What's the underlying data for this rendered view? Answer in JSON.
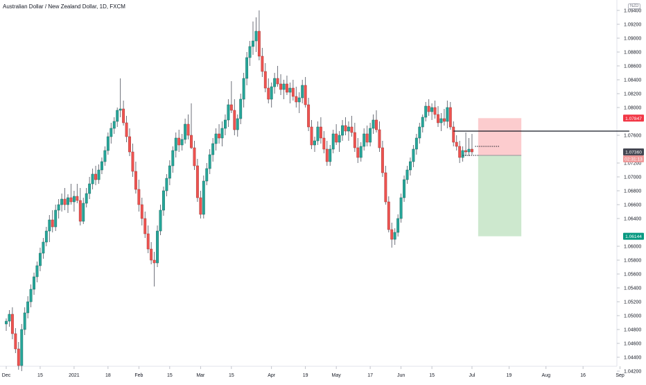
{
  "header": {
    "title": "Australian Dollar / New Zealand Dollar, 1D, FXCM"
  },
  "currency_badge": "NZD",
  "colors": {
    "up": "#26a69a",
    "down": "#ef5350",
    "up_border": "#1b6d63",
    "down_border": "#a83a38",
    "wick": "#5d606b",
    "axis_text": "#131722",
    "risk_zone": "#fcc3c6",
    "reward_zone": "#c8e6c9",
    "stop_tag": "#f23645",
    "target_tag": "#089981",
    "price_tag": "#434651"
  },
  "price_tags": [
    {
      "label": "1.07847",
      "value": 1.07847,
      "color": "#f23645"
    },
    {
      "label": "1.07360",
      "value": 1.0736,
      "color": "#434651"
    },
    {
      "label": "02:31:13",
      "value": 1.0731,
      "color": "#ef9a9a"
    },
    {
      "label": "1.06144",
      "value": 1.06144,
      "color": "#089981"
    }
  ],
  "chart_data": {
    "type": "candlestick",
    "title": "Australian Dollar / New Zealand Dollar, 1D, FXCM",
    "ylim": [
      1.0415,
      1.0955
    ],
    "y_ticks": [
      "1.09400",
      "1.09200",
      "1.09000",
      "1.08800",
      "1.08600",
      "1.08400",
      "1.08200",
      "1.08000",
      "1.07600",
      "1.07200",
      "1.07000",
      "1.06800",
      "1.06600",
      "1.06400",
      "1.06000",
      "1.05800",
      "1.05600",
      "1.05400",
      "1.05200",
      "1.05000",
      "1.04800",
      "1.04600",
      "1.04400",
      "1.04200"
    ],
    "x_ticks": [
      "Dec",
      "15",
      "2021",
      "18",
      "Feb",
      "15",
      "Mar",
      "15",
      "Apr",
      "19",
      "May",
      "17",
      "Jun",
      "15",
      "Jul",
      "19",
      "Aug",
      "16",
      "Sep"
    ],
    "x_tick_index": [
      0,
      11,
      22,
      33,
      43,
      53,
      63,
      73,
      86,
      97,
      107,
      118,
      128,
      138,
      151,
      163,
      175,
      187,
      199
    ],
    "levels": {
      "horizontal_line": 1.0766,
      "entry": 1.0731,
      "stop": 1.07847,
      "target": 1.06144,
      "dotted_line": 1.0744
    },
    "zone_index": [
      153,
      167
    ],
    "hline_index": [
      145,
      202
    ],
    "dotted_index": [
      152,
      160
    ],
    "series": [
      {
        "ohlc": [
          [
            1.0488,
            1.0496,
            1.0478,
            1.0492
          ],
          [
            1.0492,
            1.0508,
            1.0484,
            1.0502
          ],
          [
            1.0502,
            1.0512,
            1.0466,
            1.0474
          ],
          [
            1.0474,
            1.0482,
            1.0446,
            1.0452
          ],
          [
            1.0452,
            1.0462,
            1.0422,
            1.0428
          ],
          [
            1.0428,
            1.0488,
            1.042,
            1.048
          ],
          [
            1.048,
            1.0512,
            1.0472,
            1.0504
          ],
          [
            1.0504,
            1.0528,
            1.0496,
            1.052
          ],
          [
            1.052,
            1.0545,
            1.0512,
            1.0538
          ],
          [
            1.0538,
            1.0562,
            1.053,
            1.0556
          ],
          [
            1.0556,
            1.0578,
            1.0548,
            1.0572
          ],
          [
            1.0572,
            1.0598,
            1.0564,
            1.059
          ],
          [
            1.059,
            1.0612,
            1.0582,
            1.0606
          ],
          [
            1.0606,
            1.0628,
            1.06,
            1.0622
          ],
          [
            1.0622,
            1.0645,
            1.0606,
            1.0638
          ],
          [
            1.0638,
            1.0652,
            1.062,
            1.0628
          ],
          [
            1.0628,
            1.066,
            1.0622,
            1.0652
          ],
          [
            1.0652,
            1.0668,
            1.064,
            1.066
          ],
          [
            1.066,
            1.0676,
            1.065,
            1.0668
          ],
          [
            1.0668,
            1.0684,
            1.0652,
            1.066
          ],
          [
            1.066,
            1.0675,
            1.0648,
            1.067
          ],
          [
            1.067,
            1.069,
            1.066,
            1.0664
          ],
          [
            1.0664,
            1.068,
            1.065,
            1.0672
          ],
          [
            1.0672,
            1.069,
            1.0662,
            1.0666
          ],
          [
            1.0666,
            1.0684,
            1.063,
            1.0636
          ],
          [
            1.0636,
            1.067,
            1.0632,
            1.0662
          ],
          [
            1.0662,
            1.0684,
            1.0656,
            1.0676
          ],
          [
            1.0676,
            1.07,
            1.0668,
            1.069
          ],
          [
            1.069,
            1.0712,
            1.0682,
            1.0704
          ],
          [
            1.0704,
            1.0716,
            1.0688,
            1.0696
          ],
          [
            1.0696,
            1.0718,
            1.069,
            1.071
          ],
          [
            1.071,
            1.0728,
            1.0704,
            1.0722
          ],
          [
            1.0722,
            1.0744,
            1.0716,
            1.0738
          ],
          [
            1.0738,
            1.0764,
            1.0732,
            1.0758
          ],
          [
            1.0758,
            1.0778,
            1.0748,
            1.077
          ],
          [
            1.077,
            1.0786,
            1.0762,
            1.078
          ],
          [
            1.078,
            1.08,
            1.0772,
            1.0796
          ],
          [
            1.0796,
            1.0842,
            1.0786,
            1.0798
          ],
          [
            1.0798,
            1.081,
            1.0774,
            1.0778
          ],
          [
            1.0778,
            1.0788,
            1.075,
            1.0758
          ],
          [
            1.0758,
            1.077,
            1.073,
            1.0736
          ],
          [
            1.0736,
            1.0748,
            1.07,
            1.0708
          ],
          [
            1.0708,
            1.0722,
            1.0676,
            1.0682
          ],
          [
            1.0682,
            1.0696,
            1.065,
            1.066
          ],
          [
            1.066,
            1.067,
            1.063,
            1.064
          ],
          [
            1.064,
            1.065,
            1.0612,
            1.0618
          ],
          [
            1.0618,
            1.063,
            1.059,
            1.0596
          ],
          [
            1.0596,
            1.0606,
            1.0574,
            1.058
          ],
          [
            1.058,
            1.0592,
            1.0542,
            1.0576
          ],
          [
            1.0576,
            1.063,
            1.057,
            1.0622
          ],
          [
            1.0622,
            1.066,
            1.0616,
            1.0652
          ],
          [
            1.0652,
            1.0686,
            1.0644,
            1.068
          ],
          [
            1.068,
            1.0704,
            1.0672,
            1.0698
          ],
          [
            1.0698,
            1.0724,
            1.0688,
            1.0716
          ],
          [
            1.0716,
            1.0744,
            1.0706,
            1.0738
          ],
          [
            1.0738,
            1.0764,
            1.0728,
            1.0756
          ],
          [
            1.0756,
            1.0768,
            1.0736,
            1.0746
          ],
          [
            1.0746,
            1.0762,
            1.0738,
            1.0754
          ],
          [
            1.0754,
            1.0784,
            1.0748,
            1.0776
          ],
          [
            1.0776,
            1.079,
            1.0754,
            1.076
          ],
          [
            1.076,
            1.0806,
            1.074,
            1.0742
          ],
          [
            1.0742,
            1.0752,
            1.071,
            1.0716
          ],
          [
            1.0716,
            1.0726,
            1.0664,
            1.067
          ],
          [
            1.067,
            1.068,
            1.064,
            1.0646
          ],
          [
            1.0646,
            1.0702,
            1.064,
            1.0694
          ],
          [
            1.0694,
            1.072,
            1.0688,
            1.0712
          ],
          [
            1.0712,
            1.074,
            1.0704,
            1.0732
          ],
          [
            1.0732,
            1.0756,
            1.0722,
            1.0748
          ],
          [
            1.0748,
            1.077,
            1.0738,
            1.0762
          ],
          [
            1.0762,
            1.0776,
            1.0748,
            1.0756
          ],
          [
            1.0756,
            1.078,
            1.0744,
            1.077
          ],
          [
            1.077,
            1.079,
            1.076,
            1.0782
          ],
          [
            1.0782,
            1.0812,
            1.0772,
            1.0804
          ],
          [
            1.0804,
            1.0838,
            1.0792,
            1.0796
          ],
          [
            1.0796,
            1.0812,
            1.076,
            1.0768
          ],
          [
            1.0768,
            1.079,
            1.0758,
            1.0784
          ],
          [
            1.0784,
            1.082,
            1.0776,
            1.0812
          ],
          [
            1.0812,
            1.085,
            1.08,
            1.0842
          ],
          [
            1.0842,
            1.088,
            1.0832,
            1.0872
          ],
          [
            1.0872,
            1.0896,
            1.086,
            1.0888
          ],
          [
            1.0888,
            1.0924,
            1.0876,
            1.0896
          ],
          [
            1.0896,
            1.093,
            1.088,
            1.091
          ],
          [
            1.091,
            1.094,
            1.0868,
            1.0874
          ],
          [
            1.0874,
            1.0886,
            1.0844,
            1.0852
          ],
          [
            1.0852,
            1.0864,
            1.0822,
            1.0828
          ],
          [
            1.0828,
            1.0842,
            1.0806,
            1.0812
          ],
          [
            1.0812,
            1.0836,
            1.08,
            1.083
          ],
          [
            1.083,
            1.085,
            1.082,
            1.0842
          ],
          [
            1.0842,
            1.086,
            1.083,
            1.0834
          ],
          [
            1.0834,
            1.0848,
            1.0818,
            1.0826
          ],
          [
            1.0826,
            1.084,
            1.0812,
            1.0834
          ],
          [
            1.0834,
            1.0846,
            1.0818,
            1.0822
          ],
          [
            1.0822,
            1.0836,
            1.0806,
            1.0828
          ],
          [
            1.0828,
            1.084,
            1.081,
            1.0816
          ],
          [
            1.0816,
            1.083,
            1.08,
            1.0808
          ],
          [
            1.0808,
            1.0822,
            1.0792,
            1.0814
          ],
          [
            1.0814,
            1.084,
            1.0806,
            1.0832
          ],
          [
            1.0832,
            1.0844,
            1.08,
            1.0804
          ],
          [
            1.0804,
            1.0814,
            1.0766,
            1.0772
          ],
          [
            1.0772,
            1.0782,
            1.074,
            1.0746
          ],
          [
            1.0746,
            1.0758,
            1.0736,
            1.0752
          ],
          [
            1.0752,
            1.078,
            1.0746,
            1.0772
          ],
          [
            1.0772,
            1.0786,
            1.0748,
            1.0756
          ],
          [
            1.0756,
            1.0766,
            1.0734,
            1.074
          ],
          [
            1.074,
            1.0752,
            1.0716,
            1.0722
          ],
          [
            1.0722,
            1.0746,
            1.0716,
            1.074
          ],
          [
            1.074,
            1.0768,
            1.0734,
            1.0762
          ],
          [
            1.0762,
            1.0776,
            1.0746,
            1.075
          ],
          [
            1.075,
            1.0766,
            1.0736,
            1.076
          ],
          [
            1.076,
            1.0782,
            1.0752,
            1.0774
          ],
          [
            1.0774,
            1.0786,
            1.076,
            1.0766
          ],
          [
            1.0766,
            1.078,
            1.0752,
            1.0772
          ],
          [
            1.0772,
            1.0788,
            1.0758,
            1.0764
          ],
          [
            1.0764,
            1.0778,
            1.0736,
            1.0742
          ],
          [
            1.0742,
            1.0756,
            1.072,
            1.0728
          ],
          [
            1.0728,
            1.075,
            1.0722,
            1.0744
          ],
          [
            1.0744,
            1.077,
            1.0738,
            1.0762
          ],
          [
            1.0762,
            1.0774,
            1.0744,
            1.075
          ],
          [
            1.075,
            1.0778,
            1.0744,
            1.077
          ],
          [
            1.077,
            1.079,
            1.0762,
            1.0782
          ],
          [
            1.0782,
            1.0796,
            1.0764,
            1.0768
          ],
          [
            1.0768,
            1.078,
            1.0736,
            1.0742
          ],
          [
            1.0742,
            1.0752,
            1.07,
            1.0706
          ],
          [
            1.0706,
            1.0716,
            1.066,
            1.0664
          ],
          [
            1.0664,
            1.0672,
            1.062,
            1.0624
          ],
          [
            1.0624,
            1.0634,
            1.0598,
            1.061
          ],
          [
            1.061,
            1.0626,
            1.0602,
            1.062
          ],
          [
            1.062,
            1.0646,
            1.0614,
            1.064
          ],
          [
            1.064,
            1.0676,
            1.0634,
            1.067
          ],
          [
            1.067,
            1.0702,
            1.0664,
            1.0696
          ],
          [
            1.0696,
            1.0716,
            1.069,
            1.071
          ],
          [
            1.071,
            1.0728,
            1.0702,
            1.0722
          ],
          [
            1.0722,
            1.0746,
            1.0714,
            1.074
          ],
          [
            1.074,
            1.0762,
            1.0732,
            1.0756
          ],
          [
            1.0756,
            1.0778,
            1.0748,
            1.0772
          ],
          [
            1.0772,
            1.079,
            1.0764,
            1.0786
          ],
          [
            1.0786,
            1.0808,
            1.078,
            1.0802
          ],
          [
            1.0802,
            1.0812,
            1.0788,
            1.0794
          ],
          [
            1.0794,
            1.0806,
            1.0782,
            1.08
          ],
          [
            1.08,
            1.081,
            1.0784,
            1.079
          ],
          [
            1.079,
            1.0802,
            1.0772,
            1.0778
          ],
          [
            1.0778,
            1.0792,
            1.0766,
            1.0784
          ],
          [
            1.0784,
            1.0798,
            1.0774,
            1.078
          ],
          [
            1.078,
            1.081,
            1.077,
            1.08
          ],
          [
            1.08,
            1.0808,
            1.0768,
            1.0772
          ],
          [
            1.0772,
            1.078,
            1.0744,
            1.075
          ],
          [
            1.075,
            1.076,
            1.0738,
            1.0744
          ],
          [
            1.0744,
            1.0752,
            1.072,
            1.0728
          ],
          [
            1.0728,
            1.0744,
            1.0722,
            1.0738
          ],
          [
            1.0738,
            1.0764,
            1.073,
            1.0736
          ],
          [
            1.0736,
            1.0756,
            1.073,
            1.074
          ],
          [
            1.074,
            1.0762,
            1.0732,
            1.0736
          ]
        ]
      }
    ]
  }
}
